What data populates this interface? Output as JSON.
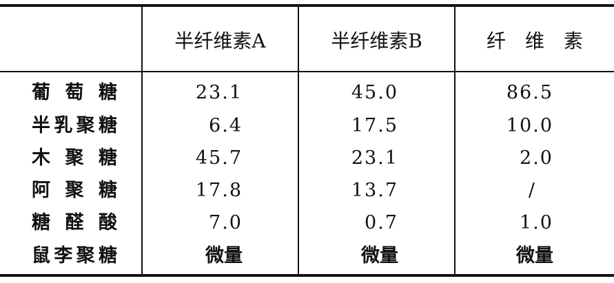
{
  "table": {
    "columns": [
      "",
      "半纤维素A",
      "半纤维素B",
      "纤　维　素"
    ],
    "rows": [
      {
        "label": "葡 萄 糖",
        "values": [
          "23.1",
          "45.0",
          "86.5"
        ]
      },
      {
        "label": "半乳聚糖",
        "values": [
          "6.4",
          "17.5",
          "10.0"
        ]
      },
      {
        "label": "木 聚 糖",
        "values": [
          "45.7",
          "23.1",
          "2.0"
        ]
      },
      {
        "label": "阿 聚 糖",
        "values": [
          "17.8",
          "13.7",
          "/"
        ]
      },
      {
        "label": "糖 醛 酸",
        "values": [
          "7.0",
          "0.7",
          "1.0"
        ]
      },
      {
        "label": "鼠李聚糖",
        "values": [
          "微量",
          "微量",
          "微量"
        ]
      }
    ]
  }
}
